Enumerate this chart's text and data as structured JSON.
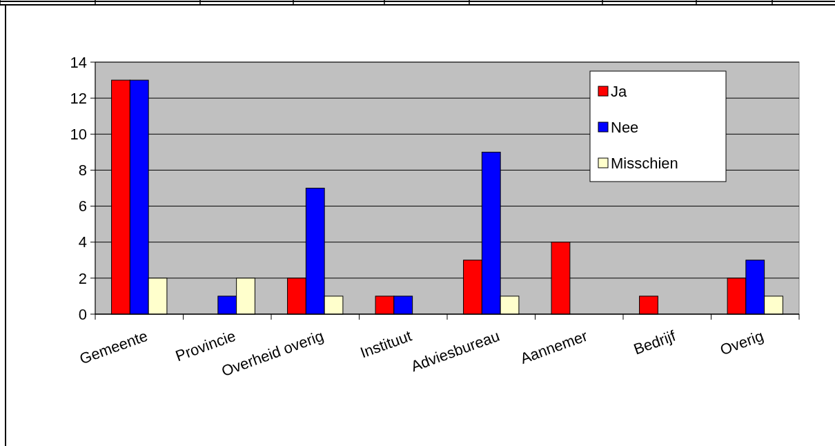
{
  "chart_data": {
    "type": "bar",
    "categories": [
      "Gemeente",
      "Provincie",
      "Overheid overig",
      "Instituut",
      "Adviesbureau",
      "Aannemer",
      "Bedrijf",
      "Overig"
    ],
    "series": [
      {
        "name": "Ja",
        "color": "#ff0000",
        "values": [
          13,
          0,
          2,
          1,
          3,
          4,
          1,
          2
        ]
      },
      {
        "name": "Nee",
        "color": "#0000ff",
        "values": [
          13,
          1,
          7,
          1,
          9,
          0,
          0,
          3
        ]
      },
      {
        "name": "Misschien",
        "color": "#ffffcc",
        "values": [
          2,
          2,
          1,
          0,
          1,
          0,
          0,
          1
        ]
      }
    ],
    "ylim": [
      0,
      14
    ],
    "yticks": [
      0,
      2,
      4,
      6,
      8,
      10,
      12,
      14
    ],
    "grid": "y",
    "legend": "top right"
  }
}
